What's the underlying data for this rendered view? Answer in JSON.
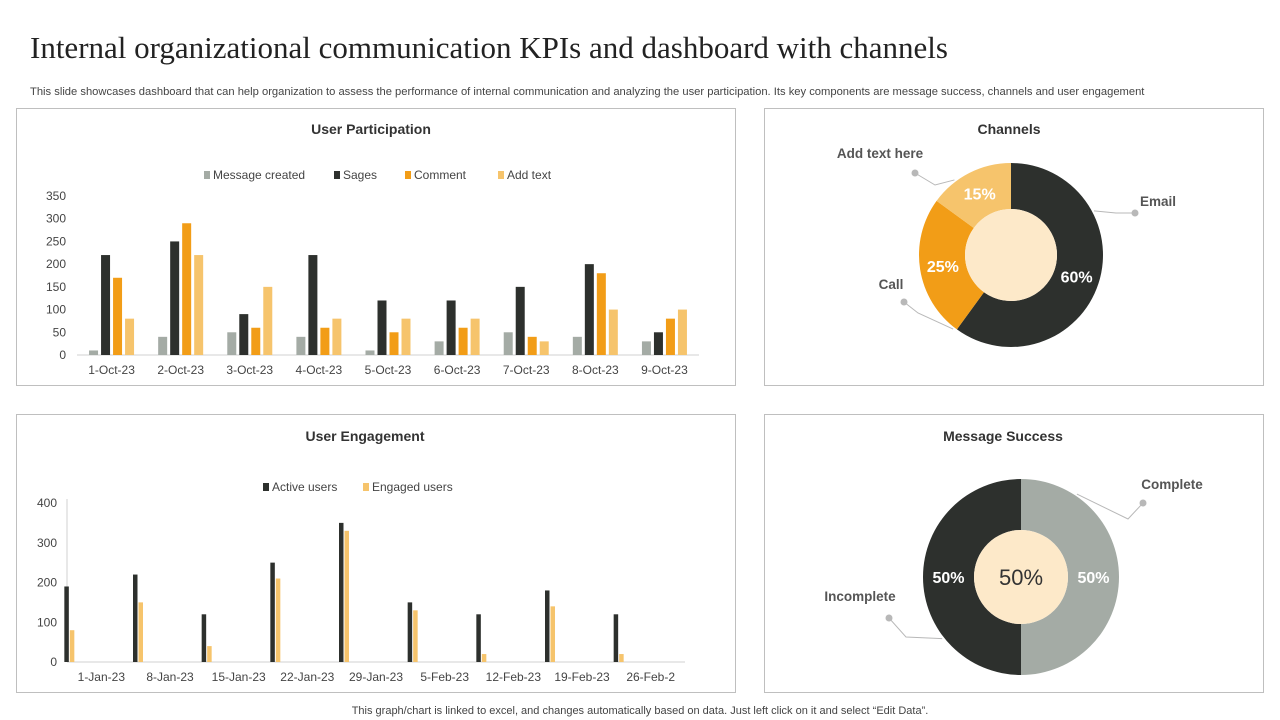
{
  "title": "Internal organizational communication KPIs and dashboard with channels",
  "subtitle": "This slide showcases dashboard that can help organization to assess the performance of internal communication and analyzing the user participation. Its key components are message success, channels and user engagement",
  "footer": "This graph/chart is linked to excel,  and changes automatically based on data. Just left click on it and select “Edit Data”.",
  "colors": {
    "gray": "#a4aba5",
    "dark": "#2d302d",
    "orange": "#f29d17",
    "light_orange": "#f6c46c",
    "cream": "#fde9c9"
  },
  "chart_data": [
    {
      "type": "bar",
      "title": "User Participation",
      "categories": [
        "1-Oct-23",
        "2-Oct-23",
        "3-Oct-23",
        "4-Oct-23",
        "5-Oct-23",
        "6-Oct-23",
        "7-Oct-23",
        "8-Oct-23",
        "9-Oct-23"
      ],
      "series": [
        {
          "name": "Message created",
          "color": "#a4aba5",
          "values": [
            10,
            40,
            50,
            40,
            10,
            30,
            50,
            40,
            30
          ]
        },
        {
          "name": "Sages",
          "color": "#2d302d",
          "values": [
            220,
            250,
            90,
            220,
            120,
            120,
            150,
            200,
            50
          ]
        },
        {
          "name": "Comment",
          "color": "#f29d17",
          "values": [
            170,
            290,
            60,
            60,
            50,
            60,
            40,
            180,
            80
          ]
        },
        {
          "name": "Add text",
          "color": "#f6c46c",
          "values": [
            80,
            220,
            150,
            80,
            80,
            80,
            30,
            100,
            100
          ]
        }
      ],
      "yticks": [
        0,
        50,
        100,
        150,
        200,
        250,
        300,
        350
      ],
      "ylim": [
        0,
        350
      ],
      "legend": "top"
    },
    {
      "type": "pie",
      "title": "Channels",
      "slices": [
        {
          "label": "Email",
          "value": 60,
          "display": "60%",
          "color": "#2d302d"
        },
        {
          "label": "Call",
          "value": 25,
          "display": "25%",
          "color": "#f29d17"
        },
        {
          "label": "Add text here",
          "value": 15,
          "display": "15%",
          "color": "#f6c46c"
        }
      ]
    },
    {
      "type": "bar",
      "title": "User Engagement",
      "categories": [
        "1-Jan-23",
        "8-Jan-23",
        "15-Jan-23",
        "22-Jan-23",
        "29-Jan-23",
        "5-Feb-23",
        "12-Feb-23",
        "19-Feb-23",
        "26-Feb-2"
      ],
      "series": [
        {
          "name": "Active users",
          "color": "#2d302d",
          "values": [
            190,
            220,
            120,
            250,
            350,
            150,
            120,
            180,
            120
          ]
        },
        {
          "name": "Engaged users",
          "color": "#f6c46c",
          "values": [
            80,
            150,
            40,
            210,
            330,
            130,
            20,
            140,
            20
          ]
        }
      ],
      "yticks": [
        0,
        100,
        200,
        300,
        400
      ],
      "ylim": [
        0,
        400
      ],
      "legend": "top"
    },
    {
      "type": "pie",
      "title": "Message Success",
      "center_label": "50%",
      "slices": [
        {
          "label": "Complete",
          "value": 50,
          "display": "50%",
          "color": "#a4aba5"
        },
        {
          "label": "Incomplete",
          "value": 50,
          "display": "50%",
          "color": "#2d302d"
        }
      ]
    }
  ]
}
